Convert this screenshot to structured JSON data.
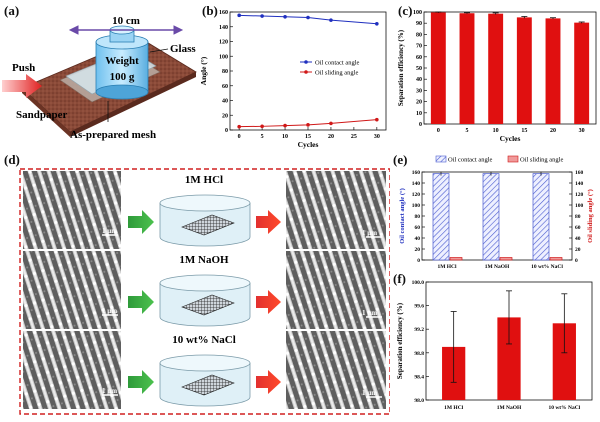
{
  "panel_labels": {
    "a": "(a)",
    "b": "(b)",
    "c": "(c)",
    "d": "(d)",
    "e": "(e)",
    "f": "(f)"
  },
  "panel_a": {
    "dimension": "10 cm",
    "glass": "Glass",
    "weight": "Weight",
    "weight_value": "100 g",
    "push": "Push",
    "sandpaper": "Sandpaper",
    "mesh": "As-prepared mesh"
  },
  "panel_d": {
    "conditions": [
      "1M HCl",
      "1M NaOH",
      "10 wt% NaCl"
    ],
    "scale_bar": "1 μm"
  },
  "chart_data": [
    {
      "id": "b",
      "type": "line",
      "xlabel": "Cycles",
      "ylabel": "Angle (°)",
      "x": [
        0,
        5,
        10,
        15,
        20,
        30
      ],
      "xlim": [
        -2,
        32
      ],
      "ylim": [
        0,
        160
      ],
      "xticks": [
        "0",
        "5",
        "10",
        "15",
        "20",
        "25",
        "30"
      ],
      "yticks": [
        "0",
        "20",
        "40",
        "60",
        "80",
        "100",
        "120",
        "140",
        "160"
      ],
      "series": [
        {
          "name": "Oil contact angle",
          "values": [
            155.5,
            154.5,
            153.5,
            152.5,
            149,
            144
          ],
          "color": "#1f2fbf"
        },
        {
          "name": "Oil sliding angle",
          "values": [
            4.5,
            5,
            6,
            7,
            9,
            14
          ],
          "color": "#d01818"
        }
      ],
      "legend": "right"
    },
    {
      "id": "c",
      "type": "bar",
      "xlabel": "Cycles",
      "ylabel": "Separation efficiency (%)",
      "categories": [
        "0",
        "5",
        "10",
        "15",
        "20",
        "30"
      ],
      "values": [
        99.6,
        98.9,
        98.5,
        95.2,
        94.3,
        90.5
      ],
      "errors": [
        0.4,
        0.4,
        0.7,
        0.8,
        0.6,
        0.6
      ],
      "ylim": [
        0,
        100
      ],
      "yticks": [
        "0",
        "10",
        "20",
        "30",
        "40",
        "50",
        "60",
        "70",
        "80",
        "90",
        "100"
      ],
      "color": "#e01010"
    },
    {
      "id": "e",
      "type": "bar",
      "ylabel": "Oil contact angle (°)",
      "ylabel_right": "Oil sliding angle (°)",
      "categories": [
        "1M HCl",
        "1M NaOH",
        "10 wt% NaCl"
      ],
      "series": [
        {
          "name": "Oil contact angle",
          "values": [
            157,
            157,
            157
          ],
          "color": "#5566cc"
        },
        {
          "name": "Oil sliding angle",
          "values": [
            4.5,
            4.5,
            4.5
          ],
          "color": "#d01818"
        }
      ],
      "ylim": [
        0,
        160
      ],
      "yticks": [
        "0",
        "20",
        "40",
        "60",
        "80",
        "100",
        "120",
        "140",
        "160"
      ],
      "legend": "top"
    },
    {
      "id": "f",
      "type": "bar",
      "ylabel": "Separation efficiency (%)",
      "categories": [
        "1M HCl",
        "1M NaOH",
        "10 wt% NaCl"
      ],
      "values": [
        98.9,
        99.4,
        99.3
      ],
      "errors": [
        0.6,
        0.45,
        0.5
      ],
      "ylim": [
        98.0,
        100.0
      ],
      "yticks": [
        "98.0",
        "98.4",
        "98.8",
        "99.2",
        "99.6",
        "100.0"
      ],
      "color": "#e01010"
    }
  ]
}
